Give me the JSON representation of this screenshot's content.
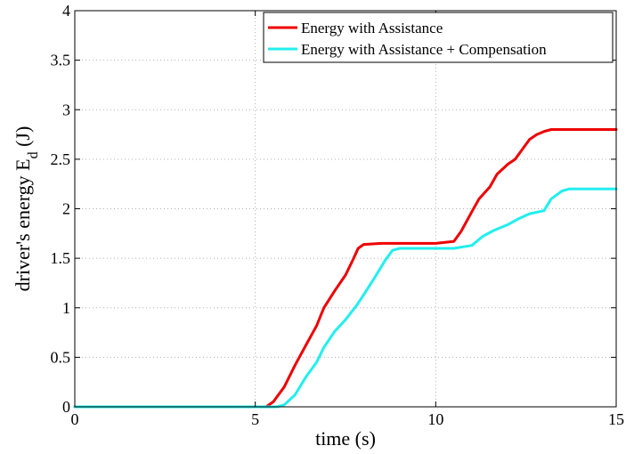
{
  "chart_data": {
    "type": "line",
    "title": "",
    "xlabel": "time (s)",
    "ylabel": "driver's energy E",
    "ylabel_subscript": "d",
    "ylabel_unit": " (J)",
    "xlim": [
      0,
      15
    ],
    "ylim": [
      0,
      4
    ],
    "xticks": [
      0,
      5,
      10,
      15
    ],
    "xtick_labels": [
      "0",
      "5",
      "10",
      "15"
    ],
    "yticks": [
      0,
      0.5,
      1,
      1.5,
      2,
      2.5,
      3,
      3.5,
      4
    ],
    "ytick_labels": [
      "0",
      "0.5",
      "1",
      "1.5",
      "2",
      "2.5",
      "3",
      "3.5",
      "4"
    ],
    "grid": true,
    "legend_position": "top-right",
    "series": [
      {
        "name": "Energy with Assistance",
        "color": "#ee0000",
        "x": [
          0,
          5.3,
          5.5,
          5.8,
          6.1,
          6.4,
          6.7,
          6.9,
          7.2,
          7.5,
          7.7,
          7.85,
          8.0,
          8.5,
          9.0,
          10.0,
          10.5,
          10.7,
          11.0,
          11.2,
          11.5,
          11.7,
          12.0,
          12.2,
          12.4,
          12.6,
          12.8,
          13.0,
          13.2,
          13.5,
          14.0,
          15.0
        ],
        "y": [
          0,
          0,
          0.05,
          0.2,
          0.42,
          0.62,
          0.82,
          1.0,
          1.17,
          1.33,
          1.48,
          1.6,
          1.64,
          1.65,
          1.65,
          1.65,
          1.67,
          1.77,
          1.97,
          2.1,
          2.22,
          2.35,
          2.45,
          2.5,
          2.6,
          2.7,
          2.75,
          2.78,
          2.8,
          2.8,
          2.8,
          2.8
        ]
      },
      {
        "name": "Energy with Assistance + Compensation",
        "color": "#22eeee",
        "x": [
          0,
          5.6,
          5.8,
          6.1,
          6.4,
          6.7,
          6.9,
          7.2,
          7.5,
          7.8,
          8.0,
          8.3,
          8.6,
          8.8,
          9.0,
          10.0,
          10.5,
          11.0,
          11.3,
          11.6,
          12.0,
          12.3,
          12.6,
          13.0,
          13.2,
          13.5,
          13.7,
          14.0,
          15.0
        ],
        "y": [
          0,
          0,
          0.02,
          0.12,
          0.3,
          0.45,
          0.6,
          0.76,
          0.88,
          1.02,
          1.13,
          1.3,
          1.48,
          1.58,
          1.6,
          1.6,
          1.6,
          1.63,
          1.72,
          1.78,
          1.84,
          1.9,
          1.95,
          1.98,
          2.1,
          2.18,
          2.2,
          2.2,
          2.2
        ]
      }
    ]
  }
}
